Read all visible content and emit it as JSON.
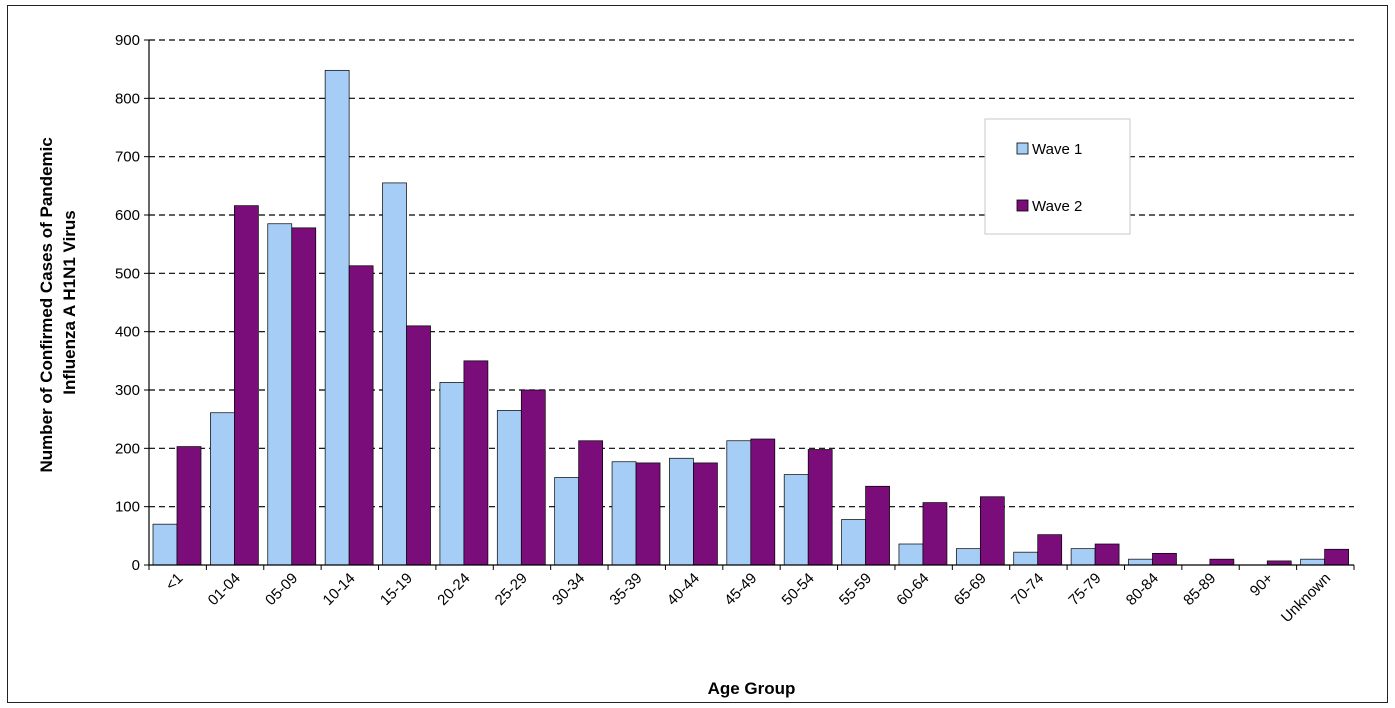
{
  "chart_data": {
    "type": "bar",
    "xlabel": "Age Group",
    "ylabel_lines": [
      "Number of Confirmed Cases of Pandemic",
      "Influenza A H1N1 Virus"
    ],
    "ylim": [
      0,
      900
    ],
    "yticks": [
      0,
      100,
      200,
      300,
      400,
      500,
      600,
      700,
      800,
      900
    ],
    "grid": "horizontal dashed",
    "legend_position": "top-right",
    "categories": [
      "<1",
      "01-04",
      "05-09",
      "10-14",
      "15-19",
      "20-24",
      "25-29",
      "30-34",
      "35-39",
      "40-44",
      "45-49",
      "50-54",
      "55-59",
      "60-64",
      "65-69",
      "70-74",
      "75-79",
      "80-84",
      "85-89",
      "90+",
      "Unknown"
    ],
    "series": [
      {
        "name": "Wave 1",
        "color": "#a6cdf5",
        "values": [
          70,
          261,
          585,
          848,
          655,
          313,
          265,
          150,
          177,
          183,
          213,
          155,
          78,
          36,
          28,
          22,
          28,
          10,
          0,
          0,
          10
        ]
      },
      {
        "name": "Wave 2",
        "color": "#7b0d7b",
        "values": [
          203,
          616,
          578,
          513,
          410,
          350,
          300,
          213,
          175,
          175,
          216,
          198,
          135,
          107,
          117,
          52,
          36,
          20,
          10,
          7,
          27
        ]
      }
    ]
  }
}
